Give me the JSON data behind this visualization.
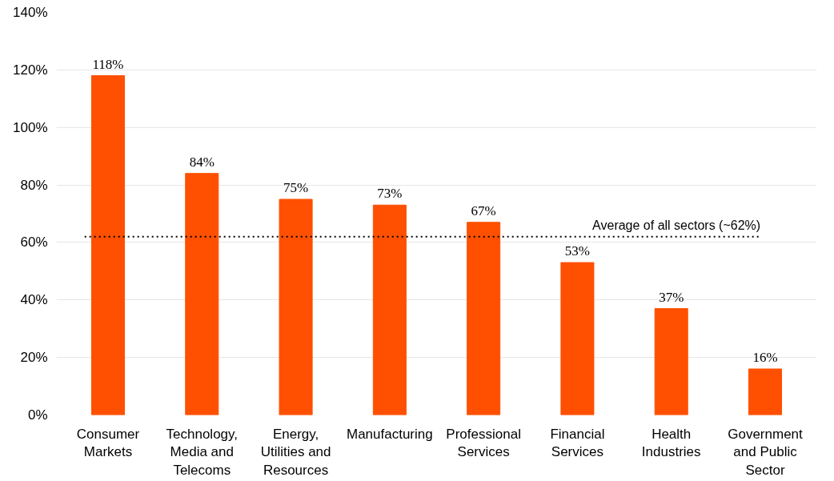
{
  "chart_data": {
    "type": "bar",
    "categories": [
      "Consumer Markets",
      "Technology, Media and Telecoms",
      "Energy, Utilities and Resources",
      "Manufacturing",
      "Professional Services",
      "Financial Services",
      "Health Industries",
      "Government and Public Sector"
    ],
    "values": [
      118,
      84,
      75,
      73,
      67,
      53,
      37,
      16
    ],
    "color": "#fe5000",
    "ylim": [
      0,
      140
    ],
    "yticks": [
      {
        "value": 0,
        "label": "0%"
      },
      {
        "value": 20,
        "label": "20%"
      },
      {
        "value": 40,
        "label": "40%"
      },
      {
        "value": 60,
        "label": "60%"
      },
      {
        "value": 80,
        "label": "80%"
      },
      {
        "value": 100,
        "label": "100%"
      },
      {
        "value": 120,
        "label": "120%"
      },
      {
        "value": 140,
        "label": "140%"
      }
    ],
    "value_labels": [
      "118%",
      "84%",
      "75%",
      "73%",
      "67%",
      "53%",
      "37%",
      "16%"
    ],
    "ref_lines": [
      {
        "axis": "y",
        "value": 62,
        "label": "Average of all sectors (~62%)",
        "color": "#000000",
        "line_style": "dotted"
      }
    ],
    "grid": "y"
  }
}
